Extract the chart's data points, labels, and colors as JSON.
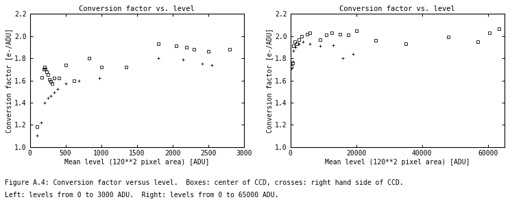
{
  "title": "Conversion factor vs. level",
  "xlabel": "Mean level (120**2 pixel area) [ADU]",
  "ylabel": "Conversion factor [e-/ADU]",
  "ylim": [
    1.0,
    2.2
  ],
  "left_xlim": [
    0,
    3000
  ],
  "right_xlim": [
    0,
    65000
  ],
  "left_xticks": [
    0,
    500,
    1000,
    1500,
    2000,
    2500,
    3000
  ],
  "right_xticks": [
    0,
    20000,
    40000,
    60000
  ],
  "yticks": [
    1.0,
    1.2,
    1.4,
    1.6,
    1.8,
    2.0,
    2.2
  ],
  "caption_line1": "Figure A.4: Conversion factor versus level.  Boxes: center of CCD, crosses: right hand side of CCD.",
  "caption_line2": "Left: levels from 0 to 3000 ADU.  Right: levels from 0 to 65000 ADU.",
  "left_boxes_x": [
    100,
    170,
    200,
    210,
    220,
    230,
    250,
    270,
    290,
    310,
    340,
    410,
    500,
    620,
    830,
    1000,
    1350,
    1800,
    2050,
    2200,
    2300,
    2500,
    2800
  ],
  "left_boxes_y": [
    1.18,
    1.63,
    1.7,
    1.72,
    1.7,
    1.68,
    1.65,
    1.61,
    1.59,
    1.57,
    1.62,
    1.62,
    1.74,
    1.6,
    1.8,
    1.72,
    1.72,
    1.93,
    1.91,
    1.9,
    1.88,
    1.86,
    1.88
  ],
  "left_crosses_x": [
    100,
    160,
    210,
    255,
    295,
    340,
    390,
    500,
    690,
    970,
    1800,
    2150,
    2420,
    2550
  ],
  "left_crosses_y": [
    1.1,
    1.22,
    1.4,
    1.44,
    1.46,
    1.49,
    1.52,
    1.57,
    1.6,
    1.62,
    1.8,
    1.79,
    1.75,
    1.74
  ],
  "right_boxes_x": [
    300,
    700,
    1000,
    1400,
    1900,
    2500,
    3500,
    5000,
    6000,
    9000,
    11000,
    12500,
    15000,
    17500,
    20000,
    26000,
    35000,
    48000,
    57000,
    60500,
    63500
  ],
  "right_boxes_y": [
    1.73,
    1.76,
    1.91,
    1.95,
    1.93,
    1.97,
    2.0,
    2.02,
    2.03,
    1.97,
    2.01,
    2.03,
    2.02,
    2.01,
    2.05,
    1.96,
    1.93,
    1.99,
    1.95,
    2.03,
    2.07
  ],
  "right_crosses_x": [
    300,
    700,
    1000,
    1500,
    2500,
    3800,
    6000,
    9000,
    13000,
    16000,
    19000
  ],
  "right_crosses_y": [
    1.71,
    1.77,
    1.87,
    1.9,
    1.93,
    1.95,
    1.93,
    1.91,
    1.92,
    1.8,
    1.84
  ],
  "background": "#ffffff"
}
